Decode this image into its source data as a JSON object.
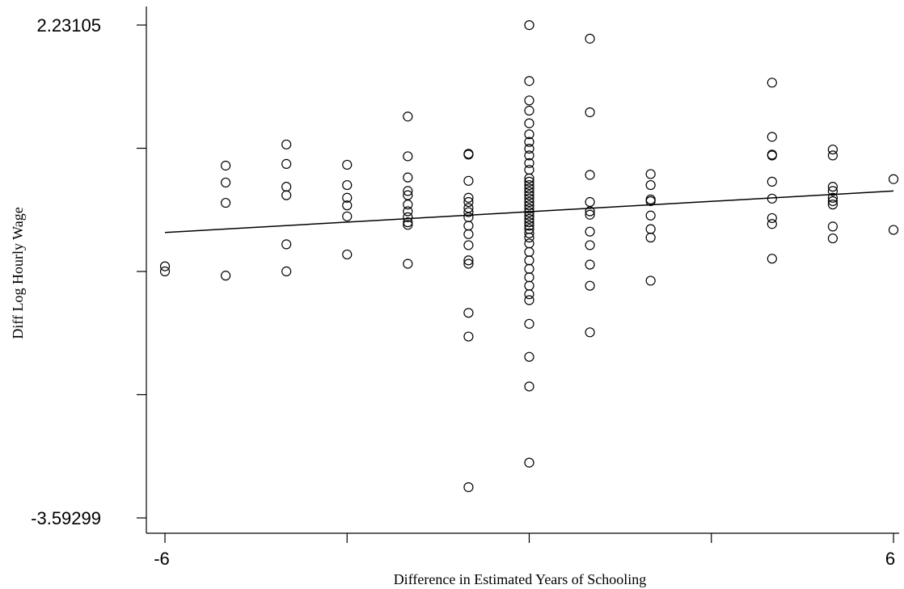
{
  "chart_data": {
    "type": "scatter",
    "title": "",
    "xlabel": "Difference in Estimated Years of Schooling",
    "ylabel": "Diff Log Hourly Wage",
    "xlim": [
      -6,
      6
    ],
    "ylim": [
      -3.59299,
      2.23105
    ],
    "x_tick_values": [
      -6,
      -3,
      0,
      3,
      6
    ],
    "x_tick_labels": [
      "-6",
      "",
      "",
      "",
      "6"
    ],
    "y_tick_values": [
      2.23105,
      0.77504,
      -0.68097,
      -2.13698,
      -3.59299
    ],
    "y_tick_labels": [
      "2.23105",
      "",
      "",
      "",
      "-3.59299"
    ],
    "grid": false,
    "fit_line": {
      "x": [
        -6,
        6
      ],
      "y": [
        -0.22,
        0.27
      ]
    },
    "points": [
      {
        "x": -6,
        "y": -0.62
      },
      {
        "x": -6,
        "y": -0.68
      },
      {
        "x": -5,
        "y": 0.57
      },
      {
        "x": -5,
        "y": 0.37
      },
      {
        "x": -5,
        "y": 0.13
      },
      {
        "x": -5,
        "y": -0.73
      },
      {
        "x": -4,
        "y": 0.82
      },
      {
        "x": -4,
        "y": 0.59
      },
      {
        "x": -4,
        "y": 0.32
      },
      {
        "x": -4,
        "y": 0.22
      },
      {
        "x": -4,
        "y": -0.36
      },
      {
        "x": -4,
        "y": -0.68
      },
      {
        "x": -3,
        "y": 0.58
      },
      {
        "x": -3,
        "y": 0.34
      },
      {
        "x": -3,
        "y": 0.19
      },
      {
        "x": -3,
        "y": 0.1
      },
      {
        "x": -3,
        "y": -0.03
      },
      {
        "x": -3,
        "y": -0.48
      },
      {
        "x": -2,
        "y": 1.15
      },
      {
        "x": -2,
        "y": 0.68
      },
      {
        "x": -2,
        "y": 0.43
      },
      {
        "x": -2,
        "y": 0.27
      },
      {
        "x": -2,
        "y": 0.22
      },
      {
        "x": -2,
        "y": 0.11
      },
      {
        "x": -2,
        "y": 0.03
      },
      {
        "x": -2,
        "y": -0.04
      },
      {
        "x": -2,
        "y": -0.1
      },
      {
        "x": -2,
        "y": -0.13
      },
      {
        "x": -2,
        "y": -0.59
      },
      {
        "x": -1,
        "y": 0.71
      },
      {
        "x": -1,
        "y": 0.7
      },
      {
        "x": -1,
        "y": 0.39
      },
      {
        "x": -1,
        "y": 0.19
      },
      {
        "x": -1,
        "y": 0.14
      },
      {
        "x": -1,
        "y": 0.07
      },
      {
        "x": -1,
        "y": 0.02
      },
      {
        "x": -1,
        "y": -0.04
      },
      {
        "x": -1,
        "y": -0.14
      },
      {
        "x": -1,
        "y": -0.24
      },
      {
        "x": -1,
        "y": -0.37
      },
      {
        "x": -1,
        "y": -0.55
      },
      {
        "x": -1,
        "y": -0.59
      },
      {
        "x": -1,
        "y": -1.17
      },
      {
        "x": -1,
        "y": -1.45
      },
      {
        "x": -1,
        "y": -3.23
      },
      {
        "x": 0,
        "y": 2.23
      },
      {
        "x": 0,
        "y": 1.57
      },
      {
        "x": 0,
        "y": 1.34
      },
      {
        "x": 0,
        "y": 1.22
      },
      {
        "x": 0,
        "y": 1.07
      },
      {
        "x": 0,
        "y": 0.94
      },
      {
        "x": 0,
        "y": 0.85
      },
      {
        "x": 0,
        "y": 0.77
      },
      {
        "x": 0,
        "y": 0.69
      },
      {
        "x": 0,
        "y": 0.6
      },
      {
        "x": 0,
        "y": 0.52
      },
      {
        "x": 0,
        "y": 0.42
      },
      {
        "x": 0,
        "y": 0.38
      },
      {
        "x": 0,
        "y": 0.34
      },
      {
        "x": 0,
        "y": 0.3
      },
      {
        "x": 0,
        "y": 0.26
      },
      {
        "x": 0,
        "y": 0.22
      },
      {
        "x": 0,
        "y": 0.18
      },
      {
        "x": 0,
        "y": 0.14
      },
      {
        "x": 0,
        "y": 0.1
      },
      {
        "x": 0,
        "y": 0.06
      },
      {
        "x": 0,
        "y": 0.02
      },
      {
        "x": 0,
        "y": -0.02
      },
      {
        "x": 0,
        "y": -0.06
      },
      {
        "x": 0,
        "y": -0.1
      },
      {
        "x": 0,
        "y": -0.14
      },
      {
        "x": 0,
        "y": -0.18
      },
      {
        "x": 0,
        "y": -0.23
      },
      {
        "x": 0,
        "y": -0.28
      },
      {
        "x": 0,
        "y": -0.35
      },
      {
        "x": 0,
        "y": -0.45
      },
      {
        "x": 0,
        "y": -0.55
      },
      {
        "x": 0,
        "y": -0.65
      },
      {
        "x": 0,
        "y": -0.75
      },
      {
        "x": 0,
        "y": -0.85
      },
      {
        "x": 0,
        "y": -0.95
      },
      {
        "x": 0,
        "y": -1.02
      },
      {
        "x": 0,
        "y": -1.3
      },
      {
        "x": 0,
        "y": -1.69
      },
      {
        "x": 0,
        "y": -2.04
      },
      {
        "x": 0,
        "y": -2.94
      },
      {
        "x": 1,
        "y": 2.07
      },
      {
        "x": 1,
        "y": 1.2
      },
      {
        "x": 1,
        "y": 0.46
      },
      {
        "x": 1,
        "y": 0.14
      },
      {
        "x": 1,
        "y": 0.03
      },
      {
        "x": 1,
        "y": -0.01
      },
      {
        "x": 1,
        "y": -0.21
      },
      {
        "x": 1,
        "y": -0.37
      },
      {
        "x": 1,
        "y": -0.6
      },
      {
        "x": 1,
        "y": -0.85
      },
      {
        "x": 1,
        "y": -1.4
      },
      {
        "x": 2,
        "y": 0.47
      },
      {
        "x": 2,
        "y": 0.34
      },
      {
        "x": 2,
        "y": 0.17
      },
      {
        "x": 2,
        "y": 0.15
      },
      {
        "x": 2,
        "y": -0.02
      },
      {
        "x": 2,
        "y": -0.18
      },
      {
        "x": 2,
        "y": -0.28
      },
      {
        "x": 2,
        "y": -0.79
      },
      {
        "x": 4,
        "y": 1.55
      },
      {
        "x": 4,
        "y": 0.91
      },
      {
        "x": 4,
        "y": 0.7
      },
      {
        "x": 4,
        "y": 0.69
      },
      {
        "x": 4,
        "y": 0.38
      },
      {
        "x": 4,
        "y": 0.18
      },
      {
        "x": 4,
        "y": -0.05
      },
      {
        "x": 4,
        "y": -0.12
      },
      {
        "x": 4,
        "y": -0.53
      },
      {
        "x": 5,
        "y": 0.76
      },
      {
        "x": 5,
        "y": 0.69
      },
      {
        "x": 5,
        "y": 0.32
      },
      {
        "x": 5,
        "y": 0.27
      },
      {
        "x": 5,
        "y": 0.19
      },
      {
        "x": 5,
        "y": 0.15
      },
      {
        "x": 5,
        "y": 0.11
      },
      {
        "x": 5,
        "y": -0.15
      },
      {
        "x": 5,
        "y": -0.29
      },
      {
        "x": 6,
        "y": 0.41
      },
      {
        "x": 6,
        "y": -0.19
      }
    ]
  }
}
